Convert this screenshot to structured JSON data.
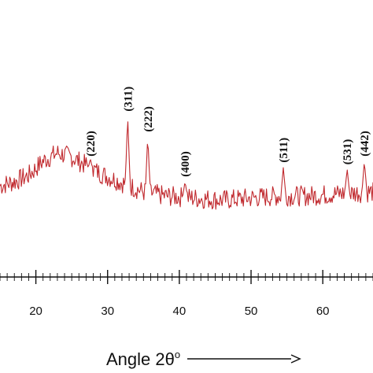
{
  "chart_data": {
    "type": "line",
    "title": "",
    "xlabel": "Angle 2θ",
    "xlabel_superscript": "o",
    "ylabel": "",
    "xlim": [
      15,
      67
    ],
    "ylim": [
      0,
      1
    ],
    "grid": false,
    "tick_labels": [
      "20",
      "30",
      "40",
      "50",
      "60"
    ],
    "tick_values": [
      20,
      30,
      40,
      50,
      60
    ],
    "series": [
      {
        "color": "#c0282d",
        "baseline": [
          [
            15,
            0.4
          ],
          [
            17,
            0.42
          ],
          [
            19,
            0.45
          ],
          [
            21,
            0.52
          ],
          [
            23,
            0.56
          ],
          [
            25,
            0.54
          ],
          [
            27,
            0.5
          ],
          [
            29,
            0.46
          ],
          [
            31,
            0.43
          ],
          [
            33,
            0.4
          ],
          [
            35,
            0.37
          ],
          [
            38,
            0.35
          ],
          [
            42,
            0.34
          ],
          [
            46,
            0.33
          ],
          [
            50,
            0.34
          ],
          [
            54,
            0.35
          ],
          [
            58,
            0.35
          ],
          [
            62,
            0.36
          ],
          [
            67,
            0.37
          ]
        ],
        "noise_amplitude": 0.05,
        "noise_points": 420
      }
    ],
    "peaks": [
      {
        "label": "(220)",
        "x": 27.6,
        "height": 0.52
      },
      {
        "label": "(311)",
        "x": 32.8,
        "height": 0.74
      },
      {
        "label": "(222)",
        "x": 35.6,
        "height": 0.64
      },
      {
        "label": "(400)",
        "x": 40.8,
        "height": 0.42
      },
      {
        "label": "(511)",
        "x": 54.5,
        "height": 0.49
      },
      {
        "label": "(531)",
        "x": 63.4,
        "height": 0.48
      },
      {
        "label": "(442)",
        "x": 65.8,
        "height": 0.52
      }
    ],
    "colors": {
      "line": "#c0282d",
      "axis": "#111111"
    }
  }
}
